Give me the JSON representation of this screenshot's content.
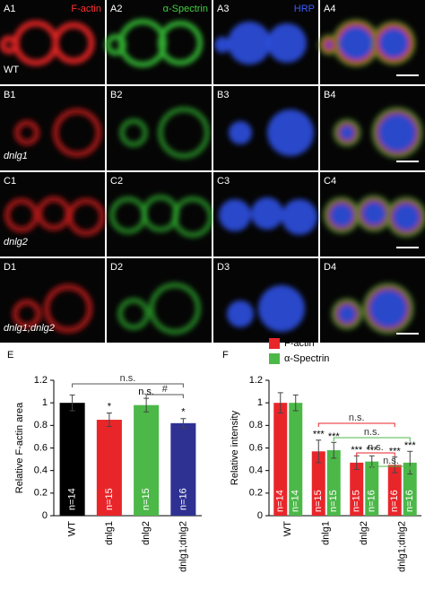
{
  "panels": {
    "rows": [
      {
        "label": "WT",
        "panels": [
          {
            "id": "A1",
            "stain": "F-actin"
          },
          {
            "id": "A2",
            "stain": "α-Spectrin"
          },
          {
            "id": "A3",
            "stain": "HRP"
          },
          {
            "id": "A4"
          }
        ]
      },
      {
        "label": "dnlg1",
        "panels": [
          {
            "id": "B1"
          },
          {
            "id": "B2"
          },
          {
            "id": "B3"
          },
          {
            "id": "B4"
          }
        ]
      },
      {
        "label": "dnlg2",
        "panels": [
          {
            "id": "C1"
          },
          {
            "id": "C2"
          },
          {
            "id": "C3"
          },
          {
            "id": "C4"
          }
        ]
      },
      {
        "label": "dnlg1;dnlg2",
        "panels": [
          {
            "id": "D1"
          },
          {
            "id": "D2"
          },
          {
            "id": "D3"
          },
          {
            "id": "D4"
          }
        ]
      }
    ]
  },
  "chart_data": [
    {
      "type": "bar",
      "panel_label": "E",
      "ylabel": "Relative F-actin area",
      "categories": [
        "WT",
        "dnlg1",
        "dnlg2",
        "dnlg1;dnlg2"
      ],
      "values": [
        1.0,
        0.85,
        0.98,
        0.82
      ],
      "errors": [
        0.07,
        0.06,
        0.06,
        0.04
      ],
      "colors": [
        "#000000",
        "#e8262a",
        "#4cb848",
        "#2e3192"
      ],
      "n_labels": [
        "n=14",
        "n=15",
        "n=15",
        "n=16"
      ],
      "significance": [
        null,
        "*",
        "n.s.",
        "*"
      ],
      "brackets": [
        "n.s.",
        "#"
      ],
      "ylim": [
        0,
        1.2
      ],
      "yticks": [
        0,
        0.2,
        0.4,
        0.6,
        0.8,
        1,
        1.2
      ]
    },
    {
      "type": "grouped-bar",
      "panel_label": "F",
      "ylabel": "Relative intensity",
      "categories": [
        "WT",
        "dnlg1",
        "dnlg2",
        "dnlg1;dnlg2"
      ],
      "series": [
        {
          "name": "F-actin",
          "color": "#e8262a",
          "values": [
            1.0,
            0.57,
            0.47,
            0.45
          ],
          "errors": [
            0.09,
            0.1,
            0.06,
            0.07
          ],
          "n_labels": [
            "n=14",
            "n=15",
            "n=15",
            "n=16"
          ],
          "significance": [
            null,
            "***",
            "***",
            "***"
          ]
        },
        {
          "name": "α-Spectrin",
          "color": "#4cb848",
          "values": [
            1.0,
            0.58,
            0.48,
            0.47
          ],
          "errors": [
            0.07,
            0.07,
            0.05,
            0.1
          ],
          "n_labels": [
            "n=14",
            "n=15",
            "n=16",
            "n=16"
          ],
          "significance": [
            null,
            "***",
            "***",
            "***"
          ]
        }
      ],
      "brackets": [
        "n.s.",
        "n.s.",
        "n.s.",
        "n.s."
      ],
      "ylim": [
        0,
        1.2
      ],
      "yticks": [
        0,
        0.2,
        0.4,
        0.6,
        0.8,
        1,
        1.2
      ]
    }
  ]
}
